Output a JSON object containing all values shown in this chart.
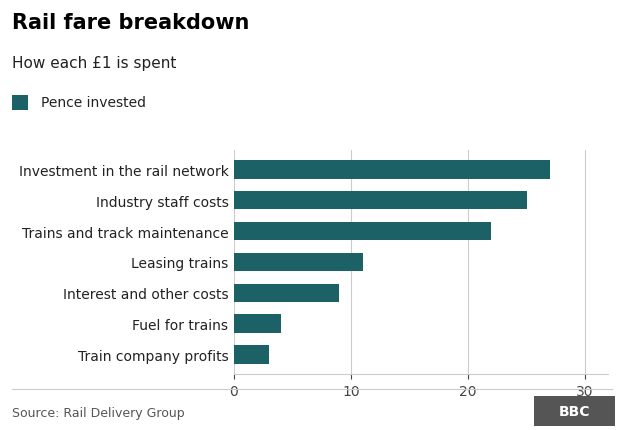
{
  "title": "Rail fare breakdown",
  "subtitle": "How each £1 is spent",
  "legend_label": "Pence invested",
  "categories": [
    "Train company profits",
    "Fuel for trains",
    "Interest and other costs",
    "Leasing trains",
    "Trains and track maintenance",
    "Industry staff costs",
    "Investment in the rail network"
  ],
  "values": [
    3,
    4,
    9,
    11,
    22,
    25,
    27
  ],
  "bar_color": "#1c6165",
  "legend_color": "#1c6165",
  "xlim": [
    0,
    32
  ],
  "xticks": [
    0,
    10,
    20,
    30
  ],
  "source": "Source: Rail Delivery Group",
  "background_color": "#ffffff",
  "title_fontsize": 15,
  "subtitle_fontsize": 11,
  "legend_fontsize": 10,
  "tick_fontsize": 10,
  "label_fontsize": 10,
  "source_fontsize": 9
}
